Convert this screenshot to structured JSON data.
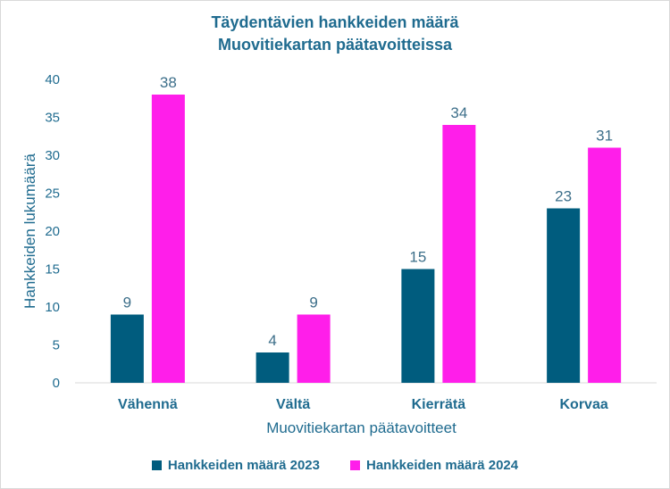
{
  "title_line1": "Täydentävien hankkeiden määrä",
  "title_line2": "Muovitiekartan päätavoitteissa",
  "chart_data": {
    "type": "bar",
    "categories": [
      "Vähennä",
      "Vältä",
      "Kierrätä",
      "Korvaa"
    ],
    "series": [
      {
        "name": "Hankkeiden määrä 2023",
        "values": [
          9,
          4,
          15,
          23
        ],
        "color": "#005c7e"
      },
      {
        "name": "Hankkeiden määrä 2024",
        "values": [
          38,
          9,
          34,
          31
        ],
        "color": "#ff1eea"
      }
    ],
    "xlabel": "Muovitiekartan päätavoitteet",
    "ylabel": "Hankkeiden lukumäärä",
    "ylim": [
      0,
      40
    ],
    "yticks": [
      0,
      5,
      10,
      15,
      20,
      25,
      30,
      35,
      40
    ],
    "grid": false,
    "legend_position": "bottom",
    "data_labels": true
  },
  "colors": {
    "axis_text": "#1f6b8f",
    "data_label": "#3d6f8a",
    "axis_line": "#d9d9d9"
  }
}
